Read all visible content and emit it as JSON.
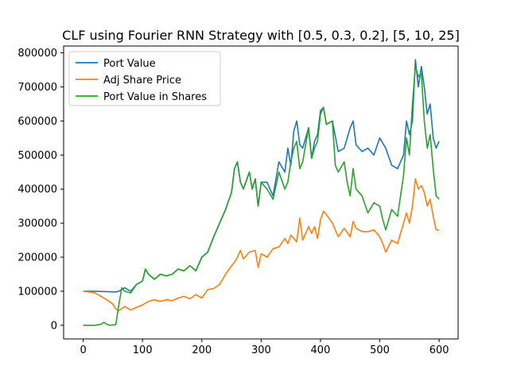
{
  "chart_data": {
    "type": "line",
    "title": "CLF using Fourier RNN Strategy with [0.5, 0.3, 0.2], [5, 10, 25]",
    "xlabel": "",
    "ylabel": "",
    "xlim": [
      -33,
      632
    ],
    "ylim": [
      -40000,
      820000
    ],
    "xticks": [
      0,
      100,
      200,
      300,
      400,
      500,
      600
    ],
    "yticks": [
      0,
      100000,
      200000,
      300000,
      400000,
      500000,
      600000,
      700000,
      800000
    ],
    "grid": false,
    "legend_position": "upper left",
    "series": [
      {
        "name": "Port Value",
        "color": "#1f77b4",
        "points": [
          [
            0,
            100000
          ],
          [
            20,
            100000
          ],
          [
            40,
            99000
          ],
          [
            55,
            98000
          ],
          [
            60,
            100000
          ],
          [
            70,
            110000
          ],
          [
            80,
            100000
          ],
          [
            90,
            120000
          ],
          [
            100,
            130000
          ],
          [
            105,
            165000
          ],
          [
            110,
            150000
          ],
          [
            120,
            135000
          ],
          [
            130,
            150000
          ],
          [
            140,
            145000
          ],
          [
            150,
            150000
          ],
          [
            160,
            165000
          ],
          [
            170,
            160000
          ],
          [
            180,
            175000
          ],
          [
            190,
            160000
          ],
          [
            200,
            200000
          ],
          [
            210,
            215000
          ],
          [
            220,
            260000
          ],
          [
            230,
            300000
          ],
          [
            240,
            340000
          ],
          [
            250,
            390000
          ],
          [
            255,
            460000
          ],
          [
            260,
            480000
          ],
          [
            265,
            420000
          ],
          [
            270,
            400000
          ],
          [
            280,
            450000
          ],
          [
            285,
            400000
          ],
          [
            290,
            430000
          ],
          [
            295,
            350000
          ],
          [
            300,
            420000
          ],
          [
            310,
            420000
          ],
          [
            320,
            380000
          ],
          [
            330,
            480000
          ],
          [
            340,
            450000
          ],
          [
            345,
            520000
          ],
          [
            350,
            470000
          ],
          [
            355,
            570000
          ],
          [
            360,
            600000
          ],
          [
            365,
            530000
          ],
          [
            370,
            520000
          ],
          [
            380,
            580000
          ],
          [
            385,
            490000
          ],
          [
            390,
            540000
          ],
          [
            395,
            560000
          ],
          [
            400,
            630000
          ],
          [
            405,
            640000
          ],
          [
            410,
            590000
          ],
          [
            420,
            600000
          ],
          [
            430,
            510000
          ],
          [
            440,
            520000
          ],
          [
            450,
            580000
          ],
          [
            455,
            600000
          ],
          [
            460,
            530000
          ],
          [
            470,
            510000
          ],
          [
            480,
            520000
          ],
          [
            490,
            500000
          ],
          [
            500,
            550000
          ],
          [
            510,
            520000
          ],
          [
            520,
            470000
          ],
          [
            530,
            460000
          ],
          [
            540,
            500000
          ],
          [
            545,
            600000
          ],
          [
            550,
            560000
          ],
          [
            555,
            600000
          ],
          [
            560,
            780000
          ],
          [
            565,
            700000
          ],
          [
            570,
            760000
          ],
          [
            575,
            700000
          ],
          [
            580,
            620000
          ],
          [
            585,
            650000
          ],
          [
            590,
            550000
          ],
          [
            595,
            520000
          ],
          [
            600,
            540000
          ]
        ]
      },
      {
        "name": "Adj Share Price",
        "color": "#ff7f0e",
        "points": [
          [
            0,
            100000
          ],
          [
            10,
            98000
          ],
          [
            20,
            95000
          ],
          [
            30,
            85000
          ],
          [
            40,
            75000
          ],
          [
            50,
            62000
          ],
          [
            55,
            48000
          ],
          [
            60,
            43000
          ],
          [
            70,
            55000
          ],
          [
            80,
            45000
          ],
          [
            90,
            53000
          ],
          [
            100,
            60000
          ],
          [
            110,
            70000
          ],
          [
            120,
            75000
          ],
          [
            130,
            70000
          ],
          [
            140,
            75000
          ],
          [
            150,
            72000
          ],
          [
            160,
            80000
          ],
          [
            170,
            85000
          ],
          [
            180,
            78000
          ],
          [
            190,
            90000
          ],
          [
            200,
            80000
          ],
          [
            210,
            105000
          ],
          [
            220,
            108000
          ],
          [
            230,
            120000
          ],
          [
            240,
            150000
          ],
          [
            250,
            175000
          ],
          [
            255,
            185000
          ],
          [
            260,
            200000
          ],
          [
            265,
            220000
          ],
          [
            270,
            195000
          ],
          [
            280,
            215000
          ],
          [
            290,
            220000
          ],
          [
            295,
            170000
          ],
          [
            300,
            210000
          ],
          [
            310,
            200000
          ],
          [
            320,
            225000
          ],
          [
            330,
            230000
          ],
          [
            340,
            255000
          ],
          [
            345,
            240000
          ],
          [
            350,
            265000
          ],
          [
            360,
            245000
          ],
          [
            365,
            315000
          ],
          [
            370,
            250000
          ],
          [
            380,
            290000
          ],
          [
            385,
            270000
          ],
          [
            390,
            290000
          ],
          [
            395,
            255000
          ],
          [
            400,
            310000
          ],
          [
            405,
            335000
          ],
          [
            410,
            325000
          ],
          [
            420,
            300000
          ],
          [
            430,
            260000
          ],
          [
            440,
            285000
          ],
          [
            450,
            260000
          ],
          [
            455,
            305000
          ],
          [
            460,
            285000
          ],
          [
            470,
            275000
          ],
          [
            480,
            275000
          ],
          [
            490,
            280000
          ],
          [
            500,
            260000
          ],
          [
            505,
            240000
          ],
          [
            510,
            215000
          ],
          [
            520,
            250000
          ],
          [
            530,
            240000
          ],
          [
            540,
            300000
          ],
          [
            545,
            330000
          ],
          [
            550,
            300000
          ],
          [
            555,
            350000
          ],
          [
            560,
            430000
          ],
          [
            565,
            400000
          ],
          [
            570,
            410000
          ],
          [
            575,
            390000
          ],
          [
            580,
            350000
          ],
          [
            585,
            370000
          ],
          [
            590,
            320000
          ],
          [
            595,
            280000
          ],
          [
            600,
            280000
          ]
        ]
      },
      {
        "name": "Port Value in Shares",
        "color": "#2ca02c",
        "points": [
          [
            0,
            0
          ],
          [
            20,
            0
          ],
          [
            30,
            3000
          ],
          [
            35,
            9000
          ],
          [
            40,
            3000
          ],
          [
            45,
            0
          ],
          [
            55,
            2000
          ],
          [
            60,
            60000
          ],
          [
            65,
            110000
          ],
          [
            70,
            100000
          ],
          [
            80,
            95000
          ],
          [
            90,
            120000
          ],
          [
            100,
            130000
          ],
          [
            105,
            165000
          ],
          [
            110,
            150000
          ],
          [
            120,
            135000
          ],
          [
            130,
            150000
          ],
          [
            140,
            145000
          ],
          [
            150,
            150000
          ],
          [
            160,
            165000
          ],
          [
            170,
            160000
          ],
          [
            180,
            175000
          ],
          [
            190,
            160000
          ],
          [
            200,
            200000
          ],
          [
            210,
            215000
          ],
          [
            220,
            260000
          ],
          [
            230,
            300000
          ],
          [
            240,
            340000
          ],
          [
            250,
            390000
          ],
          [
            255,
            460000
          ],
          [
            260,
            480000
          ],
          [
            265,
            420000
          ],
          [
            270,
            400000
          ],
          [
            280,
            450000
          ],
          [
            285,
            400000
          ],
          [
            290,
            430000
          ],
          [
            295,
            350000
          ],
          [
            300,
            420000
          ],
          [
            310,
            400000
          ],
          [
            320,
            370000
          ],
          [
            330,
            450000
          ],
          [
            340,
            400000
          ],
          [
            345,
            420000
          ],
          [
            350,
            480000
          ],
          [
            355,
            520000
          ],
          [
            360,
            540000
          ],
          [
            365,
            460000
          ],
          [
            370,
            480000
          ],
          [
            380,
            580000
          ],
          [
            385,
            490000
          ],
          [
            390,
            520000
          ],
          [
            395,
            540000
          ],
          [
            400,
            620000
          ],
          [
            405,
            640000
          ],
          [
            410,
            590000
          ],
          [
            420,
            600000
          ],
          [
            425,
            470000
          ],
          [
            430,
            450000
          ],
          [
            440,
            480000
          ],
          [
            445,
            420000
          ],
          [
            450,
            380000
          ],
          [
            455,
            460000
          ],
          [
            460,
            400000
          ],
          [
            470,
            380000
          ],
          [
            480,
            330000
          ],
          [
            490,
            360000
          ],
          [
            500,
            350000
          ],
          [
            505,
            310000
          ],
          [
            510,
            280000
          ],
          [
            520,
            340000
          ],
          [
            530,
            320000
          ],
          [
            540,
            440000
          ],
          [
            545,
            550000
          ],
          [
            550,
            500000
          ],
          [
            555,
            650000
          ],
          [
            560,
            760000
          ],
          [
            565,
            730000
          ],
          [
            570,
            740000
          ],
          [
            575,
            600000
          ],
          [
            580,
            520000
          ],
          [
            585,
            560000
          ],
          [
            590,
            460000
          ],
          [
            595,
            380000
          ],
          [
            600,
            370000
          ]
        ]
      }
    ]
  }
}
